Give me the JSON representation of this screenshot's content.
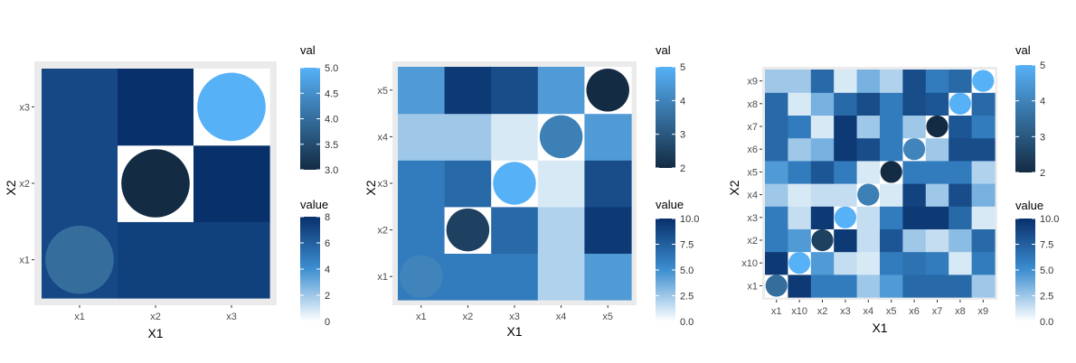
{
  "palettes": {
    "fill": {
      "low": "#ffffff",
      "mid": "#3d8fd1",
      "high": "#08306b"
    },
    "dot": {
      "low": "#132b43",
      "high": "#56b1f7"
    },
    "panel_background": "#ebebeb"
  },
  "chart_data": [
    {
      "type": "heatmap",
      "xlabel": "X1",
      "ylabel": "X2",
      "x_categories": [
        "x1",
        "x2",
        "x3"
      ],
      "y_categories": [
        "x1",
        "x2",
        "x3"
      ],
      "tile_values": [
        [
          7.0,
          7.3,
          7.3
        ],
        [
          7.0,
          0.0,
          8.0
        ],
        [
          7.0,
          8.0,
          0.0
        ]
      ],
      "circles": [
        {
          "x": "x1",
          "y": "x1",
          "val": 4.0
        },
        {
          "x": "x2",
          "y": "x2",
          "val": 3.0
        },
        {
          "x": "x3",
          "y": "x3",
          "val": 5.0
        }
      ],
      "legends": {
        "val": {
          "title": "val",
          "range": [
            3.0,
            5.0
          ],
          "breaks": [
            "3.0",
            "3.5",
            "4.0",
            "4.5",
            "5.0"
          ]
        },
        "value": {
          "title": "value",
          "range": [
            0,
            8
          ],
          "breaks": [
            "0",
            "2",
            "4",
            "6",
            "8"
          ]
        }
      }
    },
    {
      "type": "heatmap",
      "xlabel": "X1",
      "ylabel": "X2",
      "x_categories": [
        "x1",
        "x2",
        "x3",
        "x4",
        "x5"
      ],
      "y_categories": [
        "x1",
        "x2",
        "x3",
        "x4",
        "x5"
      ],
      "tile_values": [
        [
          6.0,
          6.0,
          6.0,
          2.0,
          4.5
        ],
        [
          6.0,
          0.0,
          7.0,
          2.0,
          9.5
        ],
        [
          6.0,
          7.0,
          0.0,
          1.0,
          8.5
        ],
        [
          2.5,
          2.5,
          1.0,
          0.0,
          4.5
        ],
        [
          4.5,
          9.5,
          8.5,
          4.5,
          0.0
        ]
      ],
      "circles": [
        {
          "x": "x1",
          "y": "x1",
          "val": 4.0
        },
        {
          "x": "x2",
          "y": "x2",
          "val": 2.5
        },
        {
          "x": "x3",
          "y": "x3",
          "val": 5.0
        },
        {
          "x": "x4",
          "y": "x4",
          "val": 3.9
        },
        {
          "x": "x5",
          "y": "x5",
          "val": 2.0
        }
      ],
      "legends": {
        "val": {
          "title": "val",
          "range": [
            2,
            5
          ],
          "breaks": [
            "2",
            "3",
            "4",
            "5"
          ]
        },
        "value": {
          "title": "value",
          "range": [
            0,
            10
          ],
          "breaks": [
            "0.0",
            "2.5",
            "5.0",
            "7.5",
            "10.0"
          ]
        }
      }
    },
    {
      "type": "heatmap",
      "xlabel": "X1",
      "ylabel": "X2",
      "x_categories": [
        "x1",
        "x10",
        "x2",
        "x3",
        "x4",
        "x5",
        "x6",
        "x7",
        "x8",
        "x9"
      ],
      "y_categories": [
        "x1",
        "x10",
        "x2",
        "x3",
        "x4",
        "x5",
        "x6",
        "x7",
        "x8",
        "x9"
      ],
      "tile_values": [
        [
          0.0,
          9.5,
          6.0,
          6.0,
          2.5,
          4.5,
          7.0,
          7.0,
          7.0,
          2.5
        ],
        [
          9.5,
          0.0,
          4.5,
          1.5,
          1.0,
          6.0,
          6.5,
          6.0,
          1.0,
          6.0
        ],
        [
          6.0,
          4.5,
          0.0,
          9.5,
          1.5,
          8.0,
          2.5,
          1.5,
          3.0,
          7.0
        ],
        [
          6.0,
          1.5,
          9.5,
          0.0,
          1.5,
          6.0,
          9.5,
          9.5,
          7.0,
          1.0
        ],
        [
          2.5,
          1.0,
          1.5,
          1.5,
          0.0,
          1.0,
          9.0,
          2.5,
          8.5,
          3.5
        ],
        [
          4.5,
          6.0,
          8.0,
          6.0,
          1.0,
          0.0,
          6.0,
          6.0,
          6.0,
          2.0
        ],
        [
          7.0,
          2.5,
          3.5,
          9.5,
          8.5,
          6.0,
          0.0,
          2.5,
          8.5,
          8.5
        ],
        [
          7.0,
          6.0,
          1.0,
          9.5,
          2.5,
          6.0,
          2.5,
          0.0,
          8.0,
          6.0
        ],
        [
          7.0,
          1.0,
          3.5,
          7.0,
          8.5,
          6.0,
          8.5,
          8.0,
          0.0,
          7.0
        ],
        [
          2.5,
          2.5,
          7.0,
          1.0,
          3.5,
          2.0,
          8.5,
          6.0,
          7.0,
          0.0
        ]
      ],
      "circles": [
        {
          "x": "x1",
          "y": "x1",
          "val": 3.5
        },
        {
          "x": "x10",
          "y": "x10",
          "val": 5.0
        },
        {
          "x": "x2",
          "y": "x2",
          "val": 2.5
        },
        {
          "x": "x3",
          "y": "x3",
          "val": 5.0
        },
        {
          "x": "x4",
          "y": "x4",
          "val": 3.9
        },
        {
          "x": "x5",
          "y": "x5",
          "val": 2.0
        },
        {
          "x": "x6",
          "y": "x6",
          "val": 4.0
        },
        {
          "x": "x7",
          "y": "x7",
          "val": 2.0
        },
        {
          "x": "x8",
          "y": "x8",
          "val": 5.0
        },
        {
          "x": "x9",
          "y": "x9",
          "val": 5.0
        }
      ],
      "legends": {
        "val": {
          "title": "val",
          "range": [
            2,
            5
          ],
          "breaks": [
            "2",
            "3",
            "4",
            "5"
          ]
        },
        "value": {
          "title": "value",
          "range": [
            0,
            10
          ],
          "breaks": [
            "0.0",
            "2.5",
            "5.0",
            "7.5",
            "10.0"
          ]
        }
      }
    }
  ]
}
